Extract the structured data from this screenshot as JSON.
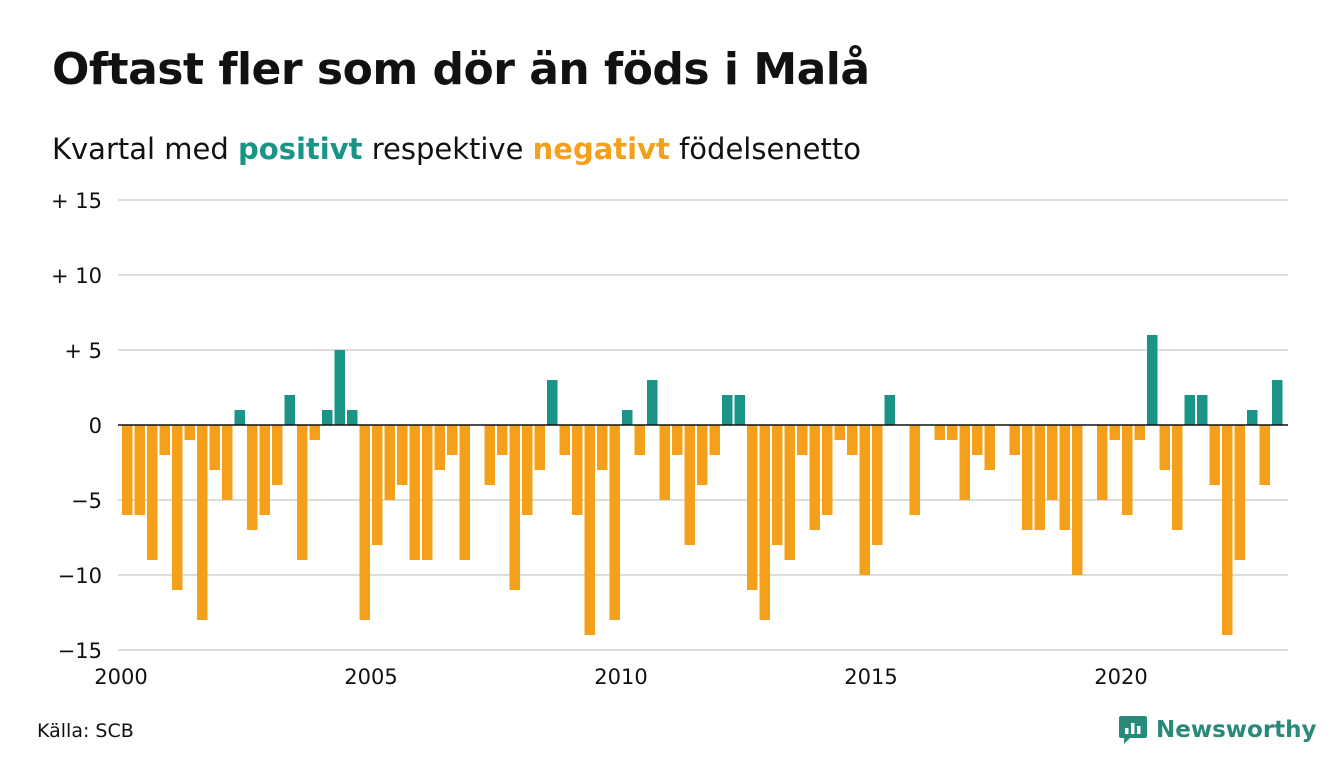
{
  "title": "Oftast fler som dör än föds i Malå",
  "subtitle": {
    "before": "Kvartal med ",
    "positive_word": "positivt",
    "middle": " respektive ",
    "negative_word": "negativt",
    "after": " födelsenetto"
  },
  "source": "Källa: SCB",
  "brand": {
    "name": "Newsworthy",
    "icon": "newsworthy-logo-icon"
  },
  "colors": {
    "positive": "#1a9486",
    "negative": "#f5a01a",
    "grid": "#dcdcdc",
    "axis": "#111111"
  },
  "chart_data": {
    "type": "bar",
    "title": "",
    "xlabel": "",
    "ylabel": "",
    "ylim": [
      -15,
      15
    ],
    "y_ticks": [
      {
        "value": 15,
        "label": "+ 15"
      },
      {
        "value": 10,
        "label": "+ 10"
      },
      {
        "value": 5,
        "label": "+  5"
      },
      {
        "value": 0,
        "label": "0"
      },
      {
        "value": -5,
        "label": "−5"
      },
      {
        "value": -10,
        "label": "−10"
      },
      {
        "value": -15,
        "label": "−15"
      }
    ],
    "x_ticks": [
      "2000",
      "2005",
      "2010",
      "2015",
      "2020"
    ],
    "start_year": 2000,
    "end_year": 2023,
    "grid": true,
    "values": [
      -6,
      -6,
      -9,
      -2,
      -11,
      -1,
      -13,
      -3,
      -5,
      1,
      -7,
      -6,
      -4,
      2,
      -9,
      -1,
      1,
      5,
      1,
      -13,
      -8,
      -5,
      -4,
      -9,
      -9,
      -3,
      -2,
      -9,
      0,
      -4,
      -2,
      -11,
      -6,
      -3,
      3,
      -2,
      -6,
      -14,
      -3,
      -13,
      1,
      -2,
      3,
      -5,
      -2,
      -8,
      -4,
      -2,
      2,
      2,
      -11,
      -13,
      -8,
      -9,
      -2,
      -7,
      -6,
      -1,
      -2,
      -10,
      -8,
      2,
      0,
      -6,
      0,
      -1,
      -1,
      -5,
      -2,
      -3,
      0,
      -2,
      -7,
      -7,
      -5,
      -7,
      -10,
      0,
      -5,
      -1,
      -6,
      -1,
      6,
      -3,
      -7,
      2,
      2,
      -4,
      -14,
      -9,
      1,
      -4,
      3
    ]
  }
}
